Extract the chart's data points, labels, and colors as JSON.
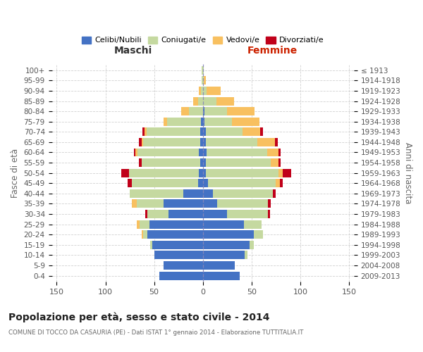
{
  "age_groups": [
    "0-4",
    "5-9",
    "10-14",
    "15-19",
    "20-24",
    "25-29",
    "30-34",
    "35-39",
    "40-44",
    "45-49",
    "50-54",
    "55-59",
    "60-64",
    "65-69",
    "70-74",
    "75-79",
    "80-84",
    "85-89",
    "90-94",
    "95-99",
    "100+"
  ],
  "birth_years": [
    "2009-2013",
    "2004-2008",
    "1999-2003",
    "1994-1998",
    "1989-1993",
    "1984-1988",
    "1979-1983",
    "1974-1978",
    "1969-1973",
    "1964-1968",
    "1959-1963",
    "1954-1958",
    "1949-1953",
    "1944-1948",
    "1939-1943",
    "1934-1938",
    "1929-1933",
    "1924-1928",
    "1919-1923",
    "1914-1918",
    "≤ 1913"
  ],
  "male_celibe": [
    45,
    40,
    50,
    52,
    57,
    55,
    35,
    40,
    20,
    5,
    4,
    3,
    4,
    3,
    3,
    2,
    0,
    0,
    0,
    0,
    0
  ],
  "male_coniugato": [
    0,
    0,
    0,
    2,
    4,
    10,
    22,
    28,
    55,
    68,
    72,
    60,
    63,
    58,
    55,
    35,
    14,
    5,
    2,
    1,
    1
  ],
  "male_vedovo": [
    0,
    0,
    0,
    0,
    2,
    3,
    0,
    5,
    0,
    0,
    0,
    0,
    2,
    2,
    2,
    3,
    8,
    5,
    2,
    0,
    0
  ],
  "male_divorziato": [
    0,
    0,
    0,
    0,
    0,
    0,
    2,
    0,
    0,
    4,
    8,
    3,
    2,
    3,
    2,
    0,
    0,
    0,
    0,
    0,
    0
  ],
  "female_celibe": [
    38,
    33,
    43,
    48,
    52,
    42,
    25,
    15,
    10,
    5,
    3,
    3,
    4,
    3,
    3,
    2,
    2,
    0,
    0,
    0,
    0
  ],
  "female_coniugata": [
    0,
    0,
    3,
    4,
    10,
    18,
    42,
    52,
    62,
    70,
    75,
    67,
    62,
    53,
    38,
    28,
    23,
    14,
    4,
    1,
    1
  ],
  "female_vedova": [
    0,
    0,
    0,
    0,
    0,
    0,
    0,
    0,
    0,
    4,
    4,
    8,
    12,
    18,
    18,
    28,
    28,
    18,
    14,
    2,
    0
  ],
  "female_divorziata": [
    0,
    0,
    0,
    0,
    0,
    0,
    2,
    3,
    3,
    3,
    9,
    2,
    2,
    3,
    3,
    0,
    0,
    0,
    0,
    0,
    0
  ],
  "color_celibe": "#4472c4",
  "color_coniugato": "#c5d9a0",
  "color_vedovo": "#f8c060",
  "color_divorziato": "#c0001a",
  "title": "Popolazione per età, sesso e stato civile - 2014",
  "subtitle": "COMUNE DI TOCCO DA CASAURIA (PE) - Dati ISTAT 1° gennaio 2014 - Elaborazione TUTTITALIA.IT",
  "xlabel_left": "Maschi",
  "xlabel_right": "Femmine",
  "ylabel_left": "Fasce di età",
  "ylabel_right": "Anni di nascita",
  "legend_labels": [
    "Celibi/Nubili",
    "Coniugati/e",
    "Vedovi/e",
    "Divorziati/e"
  ],
  "xlim": 155,
  "bg_color": "#ffffff",
  "grid_color": "#cccccc"
}
